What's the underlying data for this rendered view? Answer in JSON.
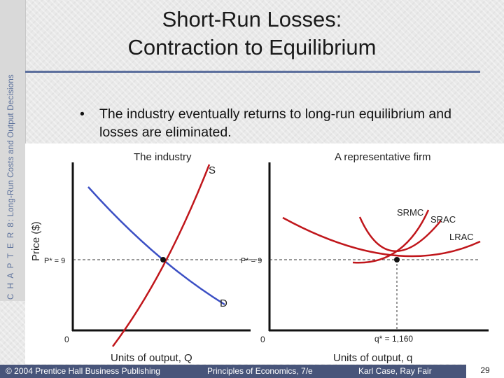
{
  "slide": {
    "sidebar_chapter": "C H A P T E R 8",
    "sidebar_topic": ": Long-Run Costs and Output Decisions",
    "title_line1": "Short-Run Losses:",
    "title_line2": "Contraction to Equilibrium",
    "bullet": "The industry eventually returns to long-run equilibrium and losses are eliminated.",
    "bullet_symbol": "•",
    "footer_copyright": "© 2004 Prentice Hall Business Publishing",
    "footer_book": "Principles of Economics, 7/e",
    "footer_authors": "Karl Case, Ray Fair",
    "page_number": "29"
  },
  "diagram": {
    "y_axis_label": "Price ($)",
    "industry": {
      "title": "The industry",
      "x_label": "Units of output, Q",
      "origin": "0",
      "price_label": "P* = 9",
      "supply_label": "S",
      "demand_label": "D"
    },
    "firm": {
      "title": "A representative firm",
      "x_label": "Units of output, q",
      "origin": "0",
      "price_label": "P* = 9",
      "quantity_label": "q* = 1,160",
      "srmc_label": "SRMC",
      "srac_label": "SRAC",
      "lrac_label": "LRAC"
    },
    "colors": {
      "supply": "#c0161b",
      "demand": "#3b4fc4",
      "cost_curves": "#c0161b",
      "axes": "#111111"
    }
  }
}
